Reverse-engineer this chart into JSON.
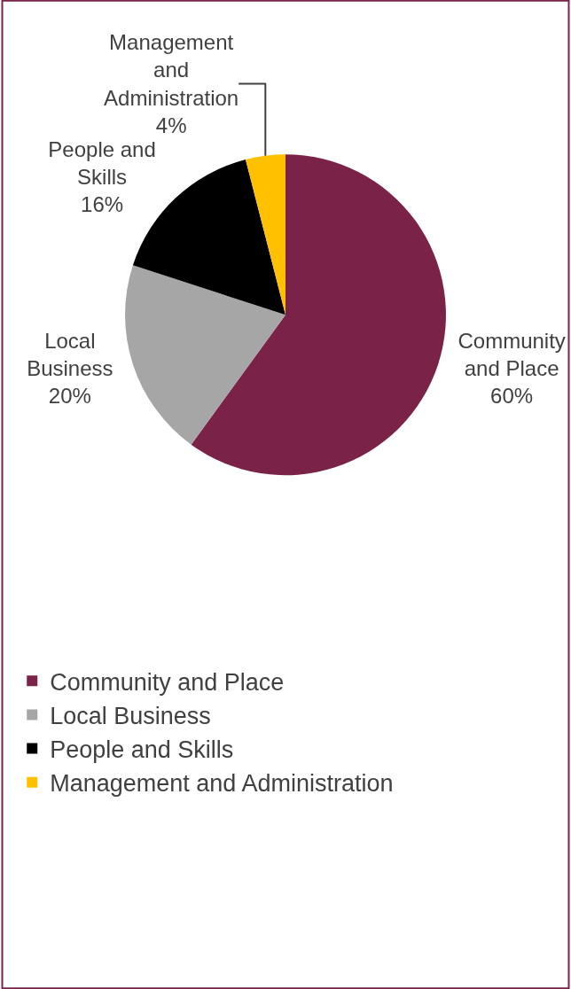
{
  "chart_data": {
    "type": "pie",
    "categories": [
      "Community and Place",
      "Local Business",
      "People and Skills",
      "Management and Administration"
    ],
    "values": [
      60,
      20,
      16,
      4
    ],
    "value_labels": [
      "60%",
      "20%",
      "16%",
      "4%"
    ],
    "colors": [
      "#7b2249",
      "#a6a6a6",
      "#000000",
      "#ffc000"
    ],
    "legend": "bottom"
  }
}
